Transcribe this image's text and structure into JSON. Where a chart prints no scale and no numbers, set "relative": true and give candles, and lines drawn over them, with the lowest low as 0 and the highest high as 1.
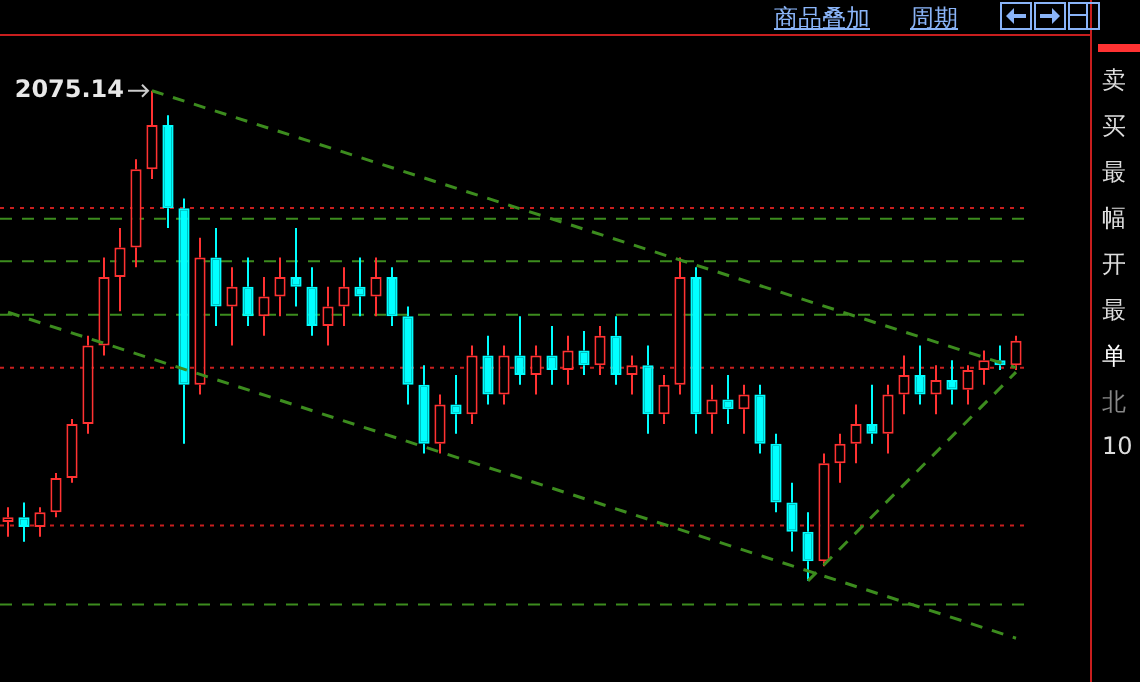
{
  "chart_data": {
    "type": "candlestick",
    "relative": true,
    "categories": [
      null,
      null,
      null,
      null,
      null,
      null,
      null,
      null,
      null,
      null,
      null,
      null,
      null,
      null,
      null,
      null,
      null,
      null,
      null,
      null,
      null,
      null,
      null,
      null,
      null,
      null,
      null,
      null,
      null,
      null,
      null,
      null,
      null,
      null,
      null,
      null,
      null,
      null,
      null,
      null,
      null,
      null,
      null,
      null,
      null,
      null,
      null,
      null,
      null,
      null,
      null,
      null,
      null,
      null,
      null,
      null,
      null,
      null,
      null,
      null,
      null,
      null,
      null,
      null
    ],
    "ohlc": [
      [
        0.12,
        0.15,
        0.09,
        0.13
      ],
      [
        0.13,
        0.16,
        0.08,
        0.11
      ],
      [
        0.11,
        0.15,
        0.09,
        0.14
      ],
      [
        0.14,
        0.22,
        0.13,
        0.21
      ],
      [
        0.21,
        0.33,
        0.2,
        0.32
      ],
      [
        0.32,
        0.5,
        0.3,
        0.48
      ],
      [
        0.48,
        0.66,
        0.46,
        0.62
      ],
      [
        0.62,
        0.72,
        0.55,
        0.68
      ],
      [
        0.68,
        0.86,
        0.64,
        0.84
      ],
      [
        0.84,
        1.0,
        0.82,
        0.93
      ],
      [
        0.93,
        0.95,
        0.72,
        0.76
      ],
      [
        0.76,
        0.78,
        0.28,
        0.4
      ],
      [
        0.4,
        0.7,
        0.38,
        0.66
      ],
      [
        0.66,
        0.72,
        0.52,
        0.56
      ],
      [
        0.56,
        0.64,
        0.48,
        0.6
      ],
      [
        0.6,
        0.66,
        0.52,
        0.54
      ],
      [
        0.54,
        0.62,
        0.5,
        0.58
      ],
      [
        0.58,
        0.66,
        0.54,
        0.62
      ],
      [
        0.62,
        0.72,
        0.56,
        0.6
      ],
      [
        0.6,
        0.64,
        0.5,
        0.52
      ],
      [
        0.52,
        0.6,
        0.48,
        0.56
      ],
      [
        0.56,
        0.64,
        0.52,
        0.6
      ],
      [
        0.6,
        0.66,
        0.54,
        0.58
      ],
      [
        0.58,
        0.66,
        0.54,
        0.62
      ],
      [
        0.62,
        0.64,
        0.52,
        0.54
      ],
      [
        0.54,
        0.56,
        0.36,
        0.4
      ],
      [
        0.4,
        0.44,
        0.26,
        0.28
      ],
      [
        0.28,
        0.38,
        0.26,
        0.36
      ],
      [
        0.36,
        0.42,
        0.3,
        0.34
      ],
      [
        0.34,
        0.48,
        0.32,
        0.46
      ],
      [
        0.46,
        0.5,
        0.36,
        0.38
      ],
      [
        0.38,
        0.48,
        0.36,
        0.46
      ],
      [
        0.46,
        0.54,
        0.4,
        0.42
      ],
      [
        0.42,
        0.48,
        0.38,
        0.46
      ],
      [
        0.46,
        0.52,
        0.4,
        0.43
      ],
      [
        0.43,
        0.5,
        0.4,
        0.47
      ],
      [
        0.47,
        0.51,
        0.42,
        0.44
      ],
      [
        0.44,
        0.52,
        0.42,
        0.5
      ],
      [
        0.5,
        0.54,
        0.4,
        0.42
      ],
      [
        0.42,
        0.46,
        0.38,
        0.44
      ],
      [
        0.44,
        0.48,
        0.3,
        0.34
      ],
      [
        0.34,
        0.42,
        0.32,
        0.4
      ],
      [
        0.4,
        0.66,
        0.38,
        0.62
      ],
      [
        0.62,
        0.64,
        0.3,
        0.34
      ],
      [
        0.34,
        0.4,
        0.3,
        0.37
      ],
      [
        0.37,
        0.42,
        0.32,
        0.35
      ],
      [
        0.35,
        0.4,
        0.3,
        0.38
      ],
      [
        0.38,
        0.4,
        0.26,
        0.28
      ],
      [
        0.28,
        0.3,
        0.14,
        0.16
      ],
      [
        0.16,
        0.2,
        0.06,
        0.1
      ],
      [
        0.1,
        0.14,
        0.0,
        0.04
      ],
      [
        0.04,
        0.26,
        0.03,
        0.24
      ],
      [
        0.24,
        0.3,
        0.2,
        0.28
      ],
      [
        0.28,
        0.36,
        0.24,
        0.32
      ],
      [
        0.32,
        0.4,
        0.28,
        0.3
      ],
      [
        0.3,
        0.4,
        0.26,
        0.38
      ],
      [
        0.38,
        0.46,
        0.34,
        0.42
      ],
      [
        0.42,
        0.48,
        0.36,
        0.38
      ],
      [
        0.38,
        0.44,
        0.34,
        0.41
      ],
      [
        0.41,
        0.45,
        0.36,
        0.39
      ],
      [
        0.39,
        0.44,
        0.36,
        0.43
      ],
      [
        0.43,
        0.47,
        0.4,
        0.45
      ],
      [
        0.45,
        0.48,
        0.43,
        0.44
      ],
      [
        0.44,
        0.5,
        0.43,
        0.49
      ]
    ],
    "colors": [
      "#ff3232",
      "#00ffff",
      "#ff3232",
      "#ff3232",
      "#ff3232",
      "#ff3232",
      "#ff3232",
      "#ff3232",
      "#ff3232",
      "#ff3232",
      "#00ffff",
      "#00ffff",
      "#ff3232",
      "#00ffff",
      "#ff3232",
      "#00ffff",
      "#ff3232",
      "#ff3232",
      "#00ffff",
      "#00ffff",
      "#ff3232",
      "#ff3232",
      "#00ffff",
      "#ff3232",
      "#00ffff",
      "#00ffff",
      "#00ffff",
      "#ff3232",
      "#00ffff",
      "#ff3232",
      "#00ffff",
      "#ff3232",
      "#00ffff",
      "#ff3232",
      "#00ffff",
      "#ff3232",
      "#00ffff",
      "#ff3232",
      "#00ffff",
      "#ff3232",
      "#00ffff",
      "#ff3232",
      "#ff3232",
      "#00ffff",
      "#ff3232",
      "#00ffff",
      "#ff3232",
      "#00ffff",
      "#00ffff",
      "#00ffff",
      "#00ffff",
      "#ff3232",
      "#ff3232",
      "#ff3232",
      "#00ffff",
      "#ff3232",
      "#ff3232",
      "#00ffff",
      "#ff3232",
      "#00ffff",
      "#ff3232",
      "#ff3232",
      "#00ffff",
      "#ff3232"
    ],
    "series": [
      {
        "type": "line",
        "color": "#3c8c1e",
        "line_style": "dashed",
        "values": [
          0.548,
          null,
          null,
          null,
          null,
          null,
          null,
          null,
          null,
          null,
          null,
          null,
          null,
          null,
          null,
          null,
          null,
          null,
          null,
          null,
          null,
          null,
          null,
          null,
          null,
          null,
          null,
          null,
          null,
          null,
          null,
          null,
          null,
          null,
          null,
          null,
          null,
          null,
          null,
          null,
          null,
          null,
          null,
          null,
          null,
          null,
          null,
          null,
          null,
          null,
          null,
          null,
          null,
          null,
          null,
          null,
          null,
          null,
          null,
          null,
          null,
          null,
          null,
          -0.117
        ]
      },
      {
        "type": "line",
        "color": "#3c8c1e",
        "line_style": "dashed",
        "values": [
          null,
          null,
          null,
          null,
          null,
          null,
          null,
          null,
          null,
          1.0,
          null,
          null,
          null,
          null,
          null,
          null,
          null,
          null,
          null,
          null,
          null,
          null,
          null,
          null,
          null,
          null,
          null,
          null,
          null,
          null,
          null,
          null,
          null,
          null,
          null,
          null,
          null,
          null,
          null,
          null,
          null,
          null,
          null,
          null,
          null,
          null,
          null,
          null,
          null,
          null,
          null,
          null,
          null,
          null,
          null,
          null,
          null,
          null,
          null,
          null,
          null,
          null,
          null,
          0.435
        ]
      },
      {
        "type": "line",
        "color": "#3c8c1e",
        "line_style": "dashed",
        "values": [
          null,
          null,
          null,
          null,
          null,
          null,
          null,
          null,
          null,
          null,
          null,
          null,
          null,
          null,
          null,
          null,
          null,
          null,
          null,
          null,
          null,
          null,
          null,
          null,
          null,
          null,
          null,
          null,
          null,
          null,
          null,
          null,
          null,
          null,
          null,
          null,
          null,
          null,
          null,
          null,
          null,
          null,
          null,
          null,
          null,
          null,
          null,
          null,
          null,
          null,
          0.0,
          null,
          null,
          null,
          null,
          null,
          null,
          null,
          null,
          null,
          null,
          null,
          null,
          0.426
        ]
      }
    ],
    "ref_lines": [
      {
        "axis": "y",
        "value": 0.761,
        "color": "#c81e1e",
        "line_style": "dotted"
      },
      {
        "axis": "y",
        "value": 0.435,
        "color": "#c81e1e",
        "line_style": "dotted"
      },
      {
        "axis": "y",
        "value": 0.113,
        "color": "#c81e1e",
        "line_style": "dotted"
      },
      {
        "axis": "y",
        "value": 0.739,
        "color": "#3c8c1e",
        "line_style": "dashed"
      },
      {
        "axis": "y",
        "value": 0.652,
        "color": "#3c8c1e",
        "line_style": "dashed"
      },
      {
        "axis": "y",
        "value": 0.543,
        "color": "#3c8c1e",
        "line_style": "dashed"
      },
      {
        "axis": "y",
        "value": -0.048,
        "color": "#3c8c1e",
        "line_style": "dashed"
      }
    ],
    "annotations": [
      "2075.14",
      "商品叠加",
      "周期",
      "卖",
      "买",
      "最",
      "幅",
      "开",
      "最",
      "单",
      "北",
      "10"
    ]
  }
}
